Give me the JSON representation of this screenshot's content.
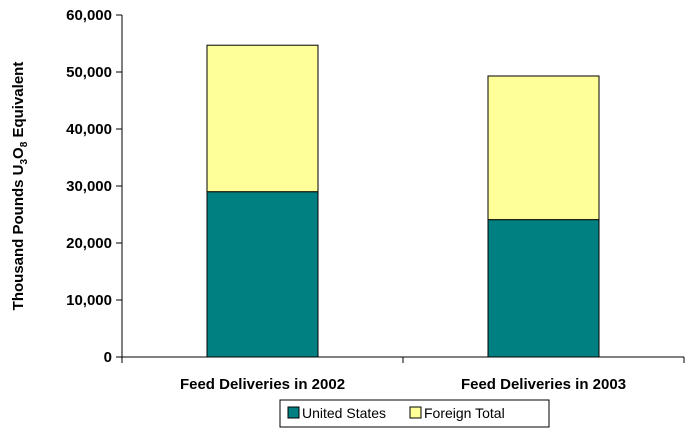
{
  "chart_data": {
    "type": "bar",
    "stacked": true,
    "categories": [
      "Feed Deliveries in 2002",
      "Feed Deliveries in 2003"
    ],
    "series": [
      {
        "name": "United States",
        "values": [
          29000,
          24100
        ],
        "color": "#008080"
      },
      {
        "name": "Foreign Total",
        "values": [
          25700,
          25200
        ],
        "color": "#ffff99"
      }
    ],
    "ylabel": {
      "prefix": "Thousand Pounds U",
      "sub1": "3",
      "mid": "O",
      "sub2": "8",
      "suffix": " Equivalent"
    },
    "xlabel": "",
    "ylim": [
      0,
      60000
    ],
    "yticks": [
      "0",
      "10,000",
      "20,000",
      "30,000",
      "40,000",
      "50,000",
      "60,000"
    ],
    "grid": false,
    "legend_position": "bottom-center"
  }
}
